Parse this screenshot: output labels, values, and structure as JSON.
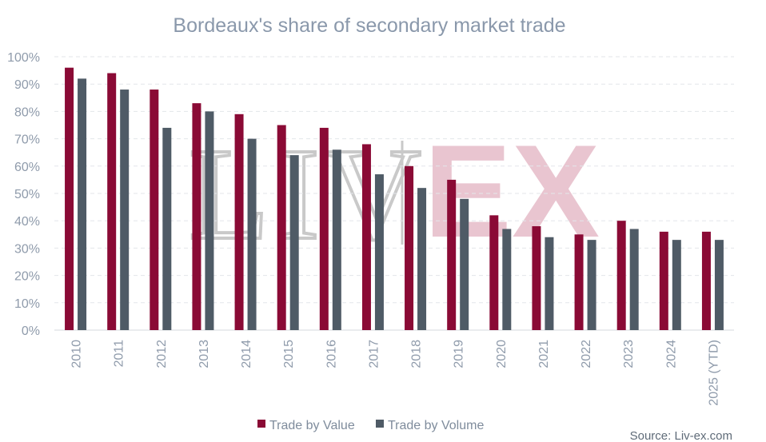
{
  "chart_data": {
    "type": "bar",
    "title": "Bordeaux's share of secondary market trade",
    "categories": [
      "2010",
      "2011",
      "2012",
      "2013",
      "2014",
      "2015",
      "2016",
      "2017",
      "2018",
      "2019",
      "2020",
      "2021",
      "2022",
      "2023",
      "2024",
      "2025 (YTD)"
    ],
    "series": [
      {
        "name": "Trade by Value",
        "color": "#8a0a35",
        "values": [
          96,
          94,
          88,
          83,
          79,
          75,
          74,
          68,
          60,
          55,
          42,
          38,
          35,
          40,
          36,
          36
        ]
      },
      {
        "name": "Trade by Volume",
        "color": "#4f5b66",
        "values": [
          92,
          88,
          74,
          80,
          70,
          64,
          66,
          57,
          52,
          48,
          37,
          34,
          33,
          37,
          33,
          33
        ]
      }
    ],
    "ylim": [
      0,
      100
    ],
    "yticks": [
      "0%",
      "10%",
      "20%",
      "30%",
      "40%",
      "50%",
      "60%",
      "70%",
      "80%",
      "90%",
      "100%"
    ],
    "grid": true,
    "legend_position": "bottom",
    "watermark": {
      "left": "LIV",
      "right": "EX"
    },
    "source": "Source: Liv-ex.com"
  }
}
